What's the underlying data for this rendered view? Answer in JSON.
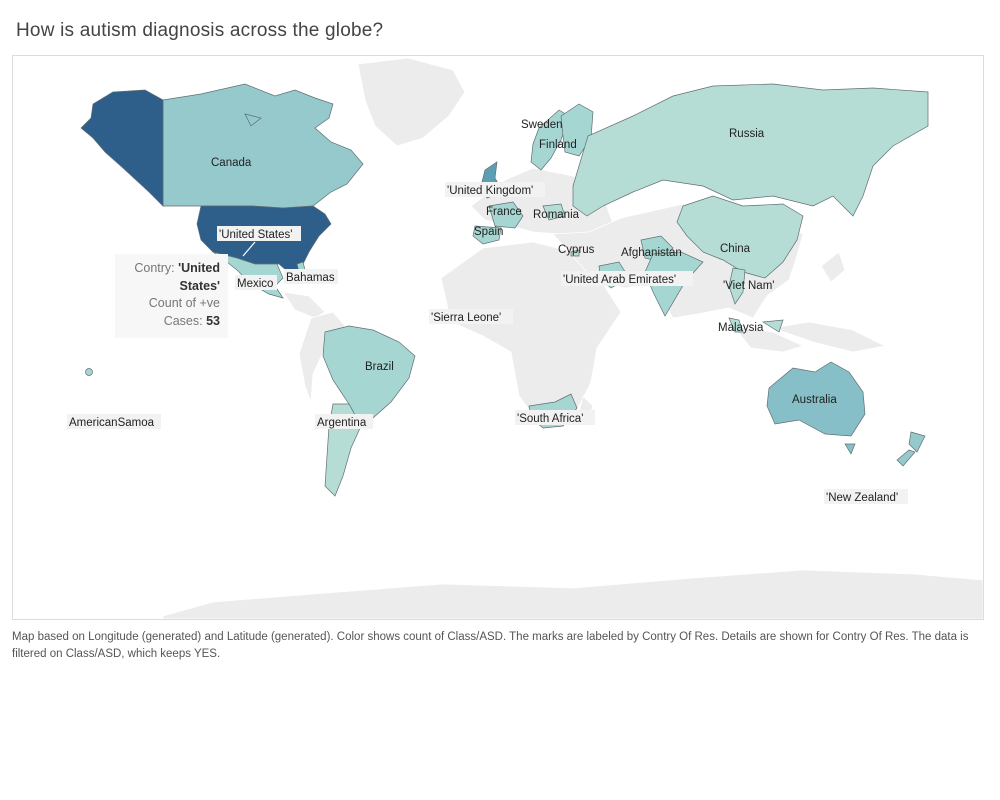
{
  "title": "How is autism diagnosis across the globe?",
  "colors": {
    "very_low": "#b5ddd5",
    "low": "#a6d6d2",
    "medium_low": "#95c9cc",
    "medium": "#86bfc7",
    "medium_high": "#5e9eb4",
    "high": "#2e5e8a",
    "no_data": "#ececec"
  },
  "countries": [
    {
      "name": "Canada",
      "label": "Canada",
      "shade": "medium_low"
    },
    {
      "name": "Alaska",
      "label": "",
      "shade": "high"
    },
    {
      "name": "United States",
      "label": "'United States'",
      "shade": "high"
    },
    {
      "name": "Mexico",
      "label": "Mexico",
      "shade": "low"
    },
    {
      "name": "Bahamas",
      "label": "Bahamas",
      "shade": "low"
    },
    {
      "name": "Brazil",
      "label": "Brazil",
      "shade": "low"
    },
    {
      "name": "Argentina",
      "label": "Argentina",
      "shade": "very_low"
    },
    {
      "name": "AmericanSamoa",
      "label": "AmericanSamoa",
      "shade": "low"
    },
    {
      "name": "Sweden",
      "label": "Sweden",
      "shade": "low"
    },
    {
      "name": "Finland",
      "label": "Finland",
      "shade": "low"
    },
    {
      "name": "United Kingdom",
      "label": "'United Kingdom'",
      "shade": "medium_high"
    },
    {
      "name": "France",
      "label": "France",
      "shade": "low"
    },
    {
      "name": "Spain",
      "label": "Spain",
      "shade": "low"
    },
    {
      "name": "Romania",
      "label": "Romania",
      "shade": "very_low"
    },
    {
      "name": "Russia",
      "label": "Russia",
      "shade": "very_low"
    },
    {
      "name": "China",
      "label": "China",
      "shade": "very_low"
    },
    {
      "name": "Cyprus",
      "label": "Cyprus",
      "shade": "very_low"
    },
    {
      "name": "Afghanistan",
      "label": "Afghanistan",
      "shade": "low"
    },
    {
      "name": "United Arab Emirates",
      "label": "'United Arab Emirates'",
      "shade": "low"
    },
    {
      "name": "Viet Nam",
      "label": "'Viet Nam'",
      "shade": "very_low"
    },
    {
      "name": "Malaysia",
      "label": "Malaysia",
      "shade": "very_low"
    },
    {
      "name": "Sierra Leone",
      "label": "'Sierra Leone'",
      "shade": "low"
    },
    {
      "name": "South Africa",
      "label": "'South Africa'",
      "shade": "low"
    },
    {
      "name": "Australia",
      "label": "Australia",
      "shade": "medium"
    },
    {
      "name": "New Zealand",
      "label": "'New Zealand'",
      "shade": "medium_low"
    }
  ],
  "tooltip": {
    "country_key": "Contry:",
    "country_value": "'United States'",
    "count_key": "Count of +ve Cases:",
    "count_value": "53"
  },
  "footnote": "Map based on Longitude (generated) and Latitude (generated).  Color shows count of Class/ASD.  The marks are labeled by Contry Of Res.  Details are shown for Contry Of Res. The data is filtered on Class/ASD, which keeps YES."
}
